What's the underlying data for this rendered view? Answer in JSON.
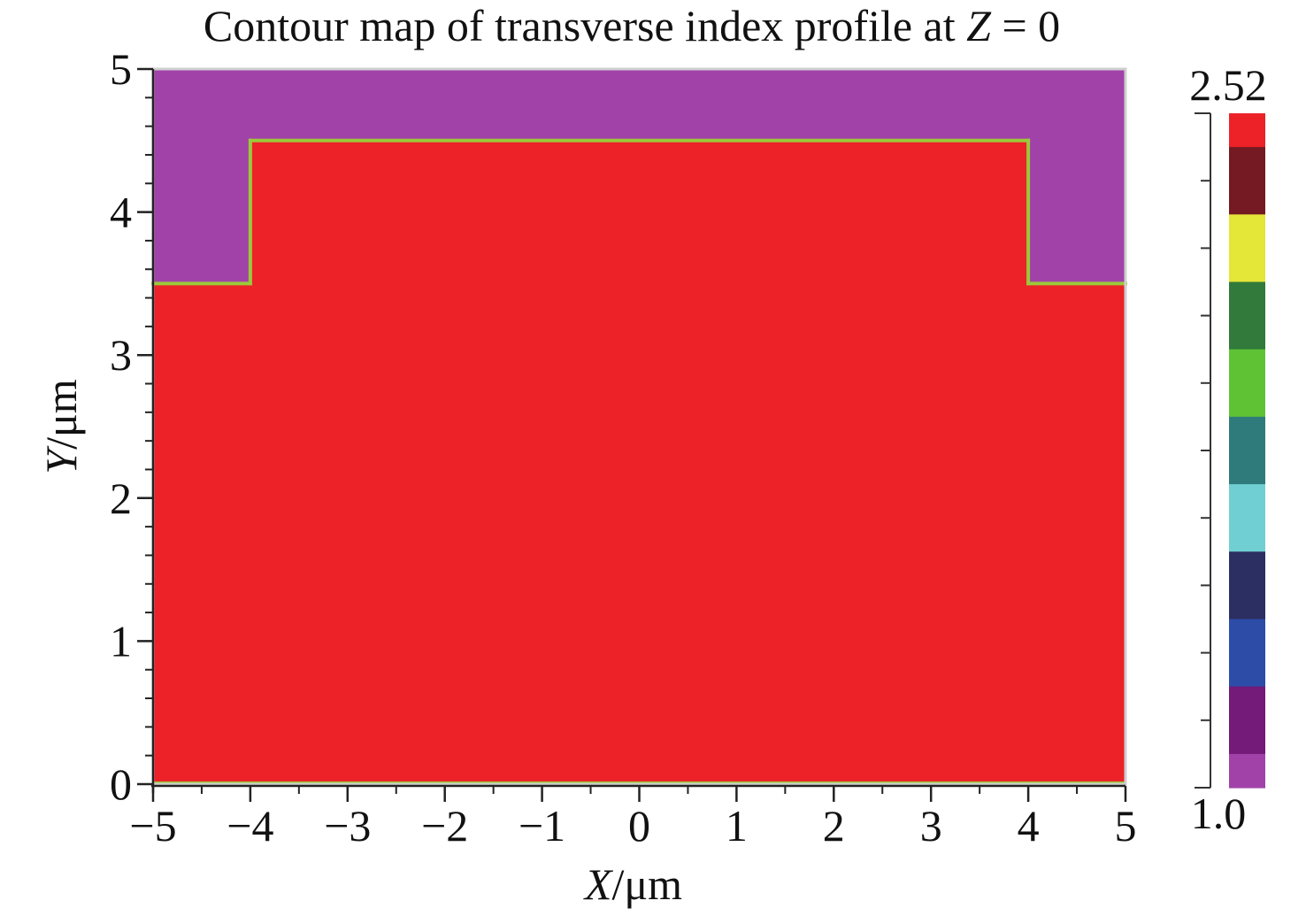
{
  "chart_data": {
    "type": "heatmap",
    "title": "Contour map of transverse index profile at Z = 0",
    "title_parts": [
      "Contour map of transverse index profile at ",
      "Z",
      " = 0"
    ],
    "xlabel": "X/μm",
    "xlabel_parts": [
      "X",
      "/μm"
    ],
    "ylabel": "Y/μm",
    "ylabel_parts": [
      "Y",
      "/μm"
    ],
    "xlim": [
      -5,
      5
    ],
    "ylim": [
      0,
      5
    ],
    "x_ticks": [
      -5,
      -4,
      -3,
      -2,
      -1,
      0,
      1,
      2,
      3,
      4,
      5
    ],
    "x_tick_labels": [
      "−5",
      "−4",
      "−3",
      "−2",
      "−1",
      "0",
      "1",
      "2",
      "3",
      "4",
      "5"
    ],
    "y_ticks": [
      0,
      1,
      2,
      3,
      4,
      5
    ],
    "y_tick_labels": [
      "0",
      "1",
      "2",
      "3",
      "4",
      "5"
    ],
    "regions": [
      {
        "value": 1.0,
        "color": "#a142a8",
        "polygon": [
          [
            -5,
            3.5
          ],
          [
            -4,
            3.5
          ],
          [
            -4,
            4.5
          ],
          [
            4,
            4.5
          ],
          [
            4,
            3.5
          ],
          [
            5,
            3.5
          ],
          [
            5,
            5
          ],
          [
            -5,
            5
          ]
        ]
      },
      {
        "value": 2.52,
        "color": "#ec2228",
        "polygon": [
          [
            -5,
            0
          ],
          [
            5,
            0
          ],
          [
            5,
            3.5
          ],
          [
            4,
            3.5
          ],
          [
            4,
            4.5
          ],
          [
            -4,
            4.5
          ],
          [
            -4,
            3.5
          ],
          [
            -5,
            3.5
          ]
        ]
      }
    ],
    "boundary_color": "#9cc93a",
    "colorbar": {
      "min": 1.0,
      "max": 2.52,
      "min_label": "1.0",
      "max_label": "2.52",
      "colors_top_to_bottom": [
        "#ec2228",
        "#751a22",
        "#e4e638",
        "#317a3b",
        "#5fc235",
        "#2f7b7b",
        "#70cfd2",
        "#2c2f62",
        "#2c4ca8",
        "#741a78",
        "#a142a8"
      ]
    }
  }
}
